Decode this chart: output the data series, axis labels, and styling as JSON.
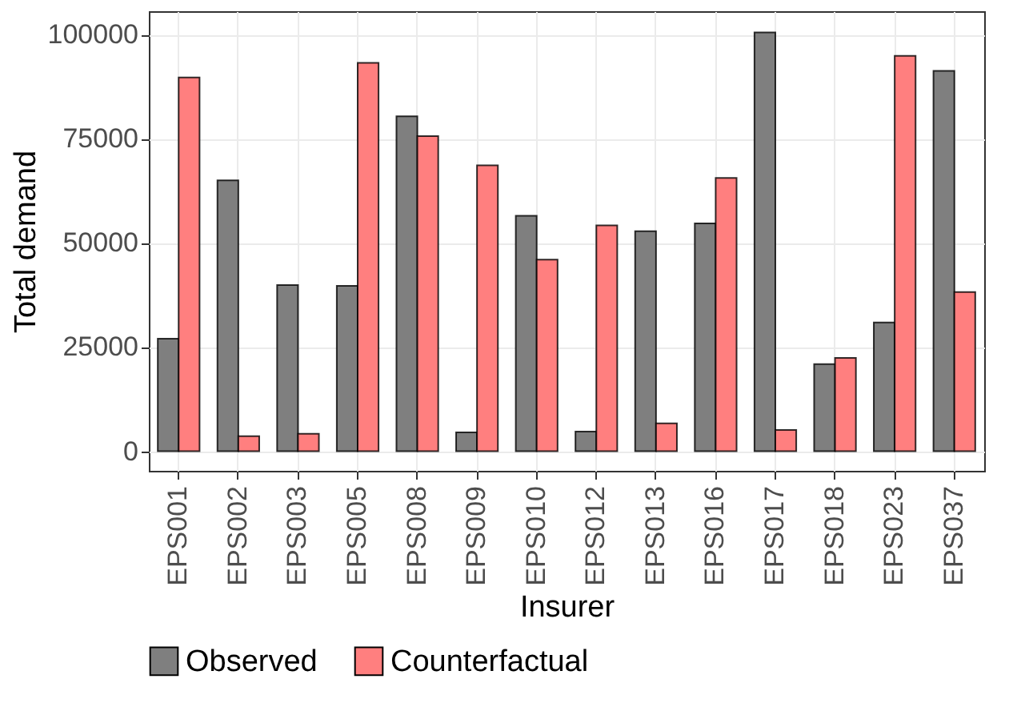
{
  "chart_data": {
    "type": "bar",
    "xlabel": "Insurer",
    "ylabel": "Total demand",
    "categories": [
      "EPS001",
      "EPS002",
      "EPS003",
      "EPS005",
      "EPS008",
      "EPS009",
      "EPS010",
      "EPS012",
      "EPS013",
      "EPS016",
      "EPS017",
      "EPS018",
      "EPS023",
      "EPS037"
    ],
    "series": [
      {
        "name": "Observed",
        "color": "#7f7f7f",
        "values": [
          27000,
          65000,
          39900,
          39700,
          80400,
          4500,
          56500,
          4700,
          52800,
          54700,
          100500,
          20900,
          30900,
          91300
        ]
      },
      {
        "name": "Counterfactual",
        "color": "#ff7f7f",
        "values": [
          89700,
          3600,
          4200,
          93200,
          75600,
          68600,
          46000,
          54200,
          6700,
          65600,
          5100,
          22400,
          94900,
          38200
        ]
      }
    ],
    "ylim": [
      -4700,
      105600
    ],
    "yticks": [
      0,
      25000,
      50000,
      75000,
      100000
    ],
    "grid": true,
    "legend": "bottom"
  }
}
